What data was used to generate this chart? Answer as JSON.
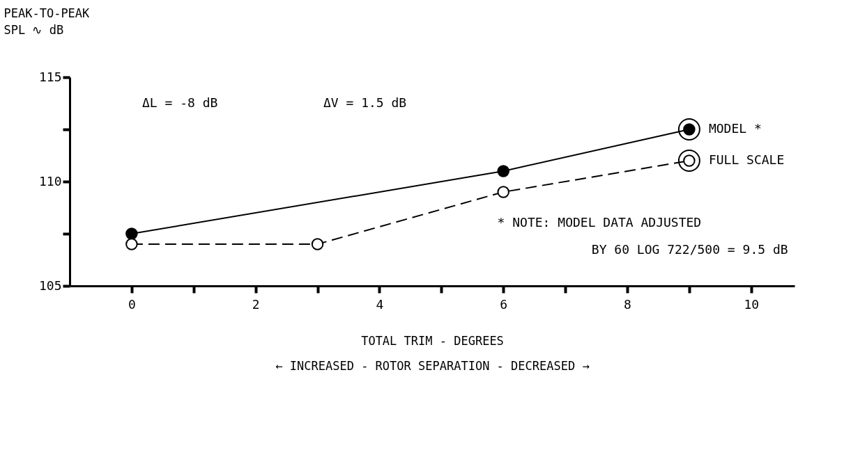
{
  "chart_data": {
    "type": "line",
    "ylabel": "PEAK-TO-PEAK\nSPL ∿ dB",
    "xlabel": "TOTAL TRIM - DEGREES\n← INCREASED - ROTOR SEPARATION - DECREASED →",
    "series": [
      {
        "name": "MODEL *",
        "color": "#000000",
        "x": [
          0,
          6,
          9
        ],
        "values": [
          107.5,
          110.5,
          112.5
        ],
        "line_style": "solid"
      },
      {
        "name": "FULL SCALE",
        "color": "#000000",
        "x": [
          0,
          3,
          6,
          9
        ],
        "values": [
          107,
          107,
          109.5,
          111
        ],
        "line_style": "dashed"
      }
    ],
    "xlim": [
      -1,
      10.7
    ],
    "ylim": [
      105,
      115
    ],
    "xticks": [
      0,
      {
        "value": 1,
        "label": null
      },
      2,
      {
        "value": 3,
        "label": null
      },
      4,
      {
        "value": 5,
        "label": null
      },
      6,
      {
        "value": 7,
        "label": null
      },
      8,
      {
        "value": 9,
        "label": null
      },
      10
    ],
    "yticks": [
      105,
      {
        "value": 107.5,
        "label": null
      },
      110,
      {
        "value": 112.5,
        "label": null
      },
      115
    ],
    "marker": "circle",
    "grid": false,
    "annotations": [
      "ΔL = -8 dB",
      "ΔV = 1.5 dB",
      "* NOTE:  MODEL DATA ADJUSTED",
      "BY 60 LOG 722/500 = 9.5 dB"
    ]
  }
}
